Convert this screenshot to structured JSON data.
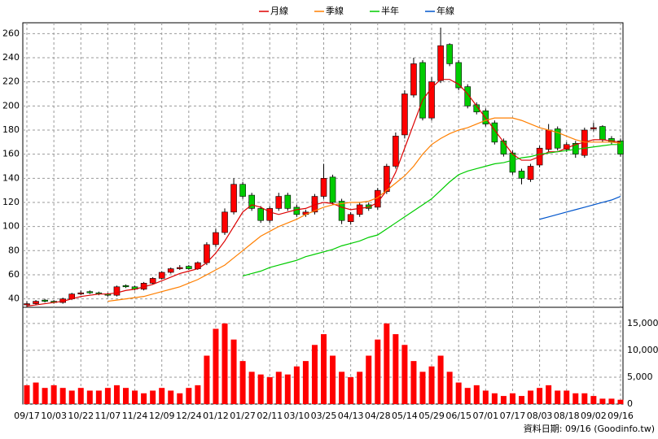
{
  "chart_data": {
    "type": "candlestick",
    "open": [
      35,
      36,
      39,
      38,
      37,
      40,
      44,
      46,
      45,
      44,
      43,
      51,
      50,
      48,
      53,
      57,
      62,
      65,
      67,
      65,
      70,
      85,
      95,
      112,
      135,
      126,
      115,
      105,
      115,
      126,
      116,
      110,
      112,
      125,
      141,
      121,
      104,
      110,
      118,
      116,
      129,
      150,
      176,
      209,
      236,
      190,
      221,
      251,
      236,
      216,
      201,
      196,
      186,
      171,
      161,
      146,
      139,
      151,
      164,
      181,
      164,
      169,
      159,
      181,
      183,
      173,
      171
    ],
    "high": [
      38,
      39,
      40,
      39,
      41,
      45,
      47,
      47,
      46,
      45,
      51,
      52,
      51,
      54,
      58,
      63,
      66,
      68,
      68,
      71,
      87,
      98,
      115,
      140,
      137,
      128,
      117,
      117,
      128,
      128,
      118,
      114,
      127,
      152,
      143,
      123,
      112,
      120,
      120,
      132,
      152,
      178,
      213,
      240,
      238,
      224,
      265,
      252,
      238,
      218,
      203,
      198,
      188,
      173,
      163,
      148,
      152,
      167,
      185,
      183,
      170,
      171,
      182,
      186,
      184,
      175,
      173
    ],
    "low": [
      33,
      35,
      37,
      36,
      36,
      39,
      43,
      44,
      43,
      42,
      42,
      49,
      47,
      47,
      52,
      56,
      61,
      64,
      64,
      64,
      68,
      83,
      93,
      110,
      123,
      113,
      103,
      103,
      113,
      113,
      108,
      108,
      110,
      123,
      118,
      102,
      102,
      108,
      113,
      114,
      127,
      148,
      173,
      207,
      188,
      188,
      219,
      233,
      213,
      198,
      193,
      183,
      168,
      158,
      143,
      135,
      137,
      149,
      162,
      163,
      162,
      157,
      157,
      179,
      170,
      168,
      158
    ],
    "close": [
      36,
      38,
      38,
      37,
      40,
      44,
      45,
      45,
      44,
      43,
      50,
      50,
      48,
      53,
      57,
      62,
      65,
      66,
      65,
      70,
      85,
      95,
      112,
      135,
      125,
      115,
      105,
      115,
      125,
      115,
      110,
      112,
      125,
      140,
      120,
      105,
      110,
      118,
      115,
      130,
      150,
      175,
      210,
      235,
      190,
      220,
      250,
      235,
      215,
      200,
      195,
      185,
      170,
      160,
      145,
      140,
      150,
      165,
      180,
      165,
      168,
      160,
      180,
      182,
      172,
      170,
      160
    ],
    "volume": [
      3500,
      4000,
      3000,
      3500,
      3000,
      2500,
      3000,
      2500,
      2500,
      3000,
      3500,
      3000,
      2500,
      2000,
      2500,
      3000,
      2500,
      2000,
      3000,
      3500,
      9000,
      14000,
      15000,
      12000,
      8000,
      6000,
      5500,
      5000,
      6000,
      5500,
      7000,
      8000,
      11000,
      13000,
      9000,
      6000,
      5000,
      6000,
      9000,
      12000,
      15000,
      13000,
      11000,
      8000,
      6000,
      7000,
      9000,
      6000,
      4000,
      3000,
      3500,
      2500,
      2000,
      1500,
      2000,
      1500,
      2500,
      3000,
      3500,
      2500,
      2500,
      2000,
      2000,
      1500,
      1000,
      1000,
      800
    ],
    "up_color": "#ff0000",
    "down_color": "#00cc00",
    "volume_color": "#ff0000",
    "series": [
      {
        "name": "月線",
        "color": "#dd0000",
        "values": [
          34,
          35,
          36,
          37,
          38,
          40,
          42,
          43,
          44,
          44,
          45,
          47,
          48,
          50,
          52,
          55,
          58,
          61,
          63,
          65,
          70,
          78,
          88,
          100,
          112,
          118,
          116,
          112,
          110,
          112,
          114,
          115,
          118,
          120,
          119,
          116,
          114,
          115,
          116,
          120,
          130,
          145,
          165,
          185,
          205,
          215,
          222,
          222,
          218,
          210,
          200,
          190,
          180,
          170,
          160,
          155,
          155,
          158,
          162,
          162,
          165,
          168,
          170,
          172,
          172,
          171,
          170
        ]
      },
      {
        "name": "季線",
        "color": "#ff7f00",
        "values": [
          null,
          null,
          null,
          null,
          null,
          null,
          null,
          null,
          null,
          38,
          39,
          40,
          41,
          42,
          44,
          46,
          48,
          50,
          53,
          56,
          60,
          64,
          68,
          74,
          80,
          86,
          92,
          96,
          100,
          103,
          106,
          110,
          113,
          116,
          118,
          119,
          120,
          120,
          121,
          124,
          130,
          136,
          142,
          150,
          160,
          168,
          173,
          177,
          180,
          182,
          185,
          188,
          190,
          190,
          190,
          188,
          185,
          182,
          180,
          178,
          175,
          172,
          170,
          170,
          170,
          170,
          169
        ]
      },
      {
        "name": "半年",
        "color": "#00cc00",
        "values": [
          null,
          null,
          null,
          null,
          null,
          null,
          null,
          null,
          null,
          null,
          null,
          null,
          null,
          null,
          null,
          null,
          null,
          null,
          null,
          null,
          null,
          null,
          null,
          null,
          59,
          61,
          63,
          66,
          68,
          70,
          72,
          75,
          77,
          79,
          81,
          84,
          86,
          88,
          91,
          93,
          98,
          103,
          108,
          113,
          118,
          123,
          130,
          137,
          143,
          146,
          148,
          150,
          152,
          153,
          155,
          157,
          158,
          160,
          161,
          162,
          163,
          164,
          165,
          166,
          167,
          168,
          168
        ]
      },
      {
        "name": "年線",
        "color": "#0055cc",
        "values": [
          null,
          null,
          null,
          null,
          null,
          null,
          null,
          null,
          null,
          null,
          null,
          null,
          null,
          null,
          null,
          null,
          null,
          null,
          null,
          null,
          null,
          null,
          null,
          null,
          null,
          null,
          null,
          null,
          null,
          null,
          null,
          null,
          null,
          null,
          null,
          null,
          null,
          null,
          null,
          null,
          null,
          null,
          null,
          null,
          null,
          null,
          null,
          null,
          null,
          null,
          null,
          null,
          null,
          null,
          null,
          null,
          null,
          106,
          108,
          110,
          112,
          114,
          116,
          118,
          120,
          122,
          125
        ]
      }
    ],
    "ylim": [
      33,
      269
    ],
    "yticks": [
      40,
      60,
      80,
      100,
      120,
      140,
      160,
      180,
      200,
      220,
      240,
      260
    ],
    "y2lim": [
      0,
      18000
    ],
    "y2ticks": [
      0,
      {
        "value": 5000,
        "label": "5,000"
      },
      {
        "value": 10000,
        "label": "10,000"
      },
      {
        "value": 15000,
        "label": "15,000"
      }
    ],
    "xlim": [
      0,
      66
    ],
    "xticks": [
      {
        "value": 0,
        "label": "09/17"
      },
      {
        "value": 3,
        "label": "10/03"
      },
      {
        "value": 6,
        "label": "10/22"
      },
      {
        "value": 9,
        "label": "11/07"
      },
      {
        "value": 12,
        "label": "11/24"
      },
      {
        "value": 15,
        "label": "12/09"
      },
      {
        "value": 18,
        "label": "12/24"
      },
      {
        "value": 21,
        "label": "01/12"
      },
      {
        "value": 24,
        "label": "01/27"
      },
      {
        "value": 27,
        "label": "02/11"
      },
      {
        "value": 30,
        "label": "03/10"
      },
      {
        "value": 33,
        "label": "03/25"
      },
      {
        "value": 36,
        "label": "04/13"
      },
      {
        "value": 39,
        "label": "04/28"
      },
      {
        "value": 42,
        "label": "05/14"
      },
      {
        "value": 45,
        "label": "05/29"
      },
      {
        "value": 48,
        "label": "06/15"
      },
      {
        "value": 51,
        "label": "07/01"
      },
      {
        "value": 54,
        "label": "07/17"
      },
      {
        "value": 57,
        "label": "08/03"
      },
      {
        "value": 60,
        "label": "08/18"
      },
      {
        "value": 63,
        "label": "09/02"
      },
      {
        "value": 66,
        "label": "09/16"
      }
    ],
    "grid": true,
    "legend": "top",
    "footer": "資料日期: 09/16 (Goodinfo.tw)"
  }
}
